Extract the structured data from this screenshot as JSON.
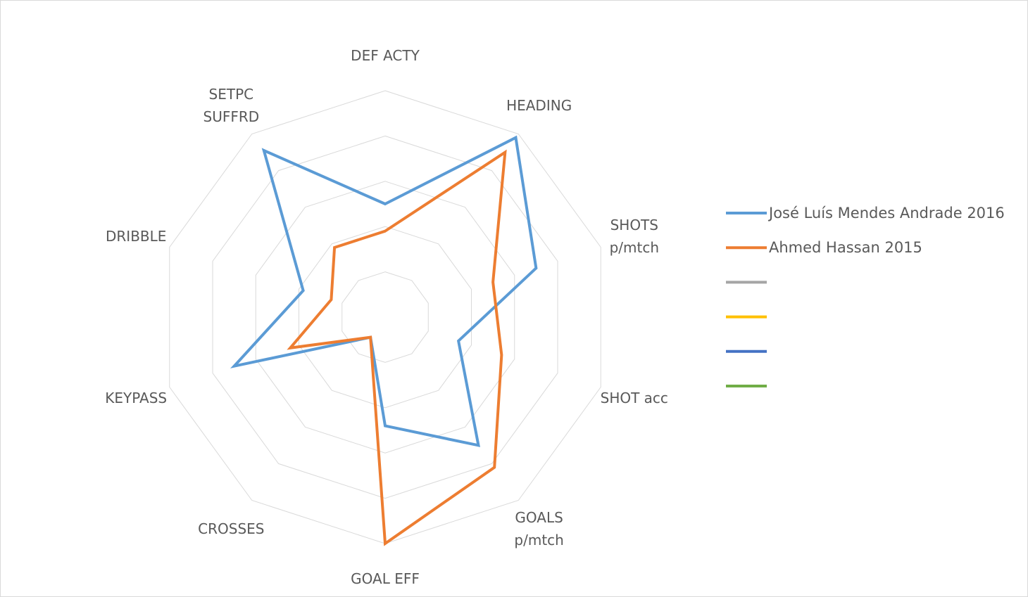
{
  "chart_data": {
    "type": "radar",
    "categories": [
      "DEF ACTY",
      "HEADING",
      "SHOTS\np/mtch",
      "SHOT acc",
      "GOALS\np/mtch",
      "GOAL EFF",
      "CROSSES",
      "KEYPASS",
      "DRIBBLE",
      "SETPC\nSUFFRD"
    ],
    "series": [
      {
        "name": "José Luís Mendes Andrade 2016",
        "color": "#5b9bd5",
        "values": [
          2.5,
          4.9,
          3.5,
          1.7,
          3.5,
          2.4,
          0.55,
          3.5,
          1.9,
          4.55
        ]
      },
      {
        "name": "Ahmed Hassan 2015",
        "color": "#ed7d31",
        "values": [
          1.9,
          4.5,
          2.5,
          2.7,
          4.1,
          5.0,
          0.55,
          2.2,
          1.25,
          1.9
        ]
      },
      {
        "name": null,
        "color": "#a5a5a5",
        "values": [
          null,
          null,
          null,
          null,
          null,
          null,
          null,
          null,
          null,
          null
        ]
      },
      {
        "name": null,
        "color": "#ffc000",
        "values": [
          null,
          null,
          null,
          null,
          null,
          null,
          null,
          null,
          null,
          null
        ]
      },
      {
        "name": null,
        "color": "#4472c4",
        "values": [
          null,
          null,
          null,
          null,
          null,
          null,
          null,
          null,
          null,
          null
        ]
      },
      {
        "name": null,
        "color": "#70ad47",
        "values": [
          null,
          null,
          null,
          null,
          null,
          null,
          null,
          null,
          null,
          null
        ]
      }
    ],
    "ylim": [
      0,
      5
    ],
    "yticks": [
      0,
      1,
      2,
      3,
      4,
      5
    ],
    "grid": true,
    "legend": "right"
  }
}
